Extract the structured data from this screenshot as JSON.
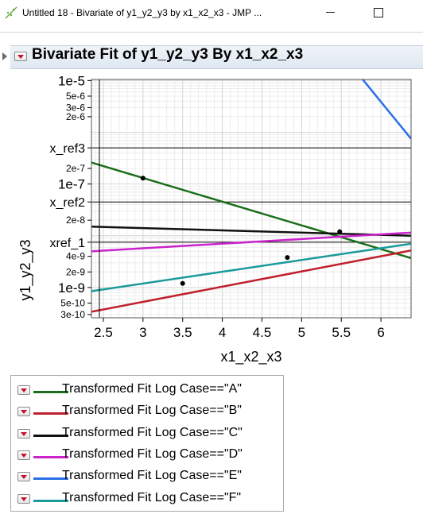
{
  "window": {
    "title": "Untitled 18 - Bivariate of y1_y2_y3 by x1_x2_x3 - JMP ..."
  },
  "report": {
    "title": "Bivariate Fit of y1_y2_y3 By x1_x2_x3"
  },
  "chart_data": {
    "type": "scatter",
    "xlabel": "x1_x2_x3",
    "ylabel": "y1_y2_y3",
    "xlim": [
      2.35,
      6.38
    ],
    "ylim": [
      2.6e-10,
      1.05e-05
    ],
    "yscale": "log",
    "grid": true,
    "x_ticks": [
      2.5,
      3,
      3.5,
      4,
      4.5,
      5,
      5.5,
      6
    ],
    "x_tick_labels": [
      "2.5",
      "3",
      "3.5",
      "4",
      "4.5",
      "5",
      "5.5",
      "6"
    ],
    "y_ticks": [
      1e-05,
      5e-06,
      3e-06,
      2e-06,
      2e-07,
      1e-07,
      2e-08,
      4e-09,
      2e-09,
      1e-09,
      5e-10,
      3e-10
    ],
    "y_tick_labels": [
      "1e-5",
      "5e-6",
      "3e-6",
      "2e-6",
      "2e-7",
      "1e-7",
      "2e-8",
      "4e-9",
      "2e-9",
      "1e-9",
      "5e-10",
      "3e-10"
    ],
    "reference_lines": [
      {
        "label": "x_ref3",
        "y": 5e-07
      },
      {
        "label": "x_ref2",
        "y": 4.5e-08
      },
      {
        "label": "xref_1",
        "y": 7.5e-09
      }
    ],
    "points": [
      {
        "x": 3.0,
        "y": 1.3e-07
      },
      {
        "x": 3.5,
        "y": 1.2e-09
      },
      {
        "x": 4.82,
        "y": 3.8e-09
      },
      {
        "x": 5.48,
        "y": 1.2e-08
      }
    ],
    "series": [
      {
        "name": "Transformed Fit Log Case==\"A\"",
        "color": "#1a6e1a",
        "x": [
          2.35,
          6.38
        ],
        "y": [
          2.6e-07,
          3.7e-09
        ]
      },
      {
        "name": "Transformed Fit Log Case==\"B\"",
        "color": "#c0202c",
        "x": [
          2.35,
          6.38
        ],
        "y": [
          3.4e-10,
          5.2e-09
        ]
      },
      {
        "name": "Transformed Fit Log Case==\"C\"",
        "color": "#111111",
        "x": [
          2.35,
          6.38
        ],
        "y": [
          1.5e-08,
          1e-08
        ]
      },
      {
        "name": "Transformed Fit Log Case==\"D\"",
        "color": "#cc22cc",
        "x": [
          2.35,
          6.38
        ],
        "y": [
          5e-09,
          1.15e-08
        ]
      },
      {
        "name": "Transformed Fit Log Case==\"E\"",
        "color": "#2a6ee6",
        "x": [
          5.77,
          6.38
        ],
        "y": [
          1.05e-05,
          7.5e-07
        ]
      },
      {
        "name": "Transformed Fit Log Case==\"F\"",
        "color": "#1a9a9a",
        "x": [
          2.35,
          6.38
        ],
        "y": [
          8.5e-10,
          7e-09
        ]
      }
    ]
  },
  "legend": {
    "items": [
      {
        "label": "Transformed Fit Log Case==\"A\"",
        "color": "#1a6e1a"
      },
      {
        "label": "Transformed Fit Log Case==\"B\"",
        "color": "#c0202c"
      },
      {
        "label": "Transformed Fit Log Case==\"C\"",
        "color": "#111111"
      },
      {
        "label": "Transformed Fit Log Case==\"D\"",
        "color": "#cc22cc"
      },
      {
        "label": "Transformed Fit Log Case==\"E\"",
        "color": "#2a6ee6"
      },
      {
        "label": "Transformed Fit Log Case==\"F\"",
        "color": "#1a9a9a"
      }
    ]
  }
}
